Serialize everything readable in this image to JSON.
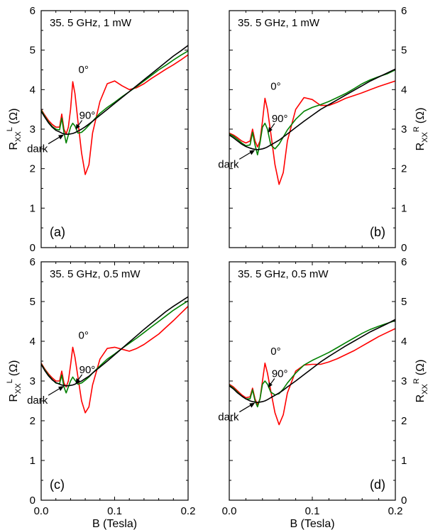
{
  "figure": {
    "xlabel": "B (Tesla)",
    "ylabel_left_main": "R",
    "ylabel_left_sub": "XX",
    "ylabel_left_sup": "L",
    "ylabel_right_main": "R",
    "ylabel_right_sub": "XX",
    "ylabel_right_sup": "R",
    "ylabel_unit": "(Ω)"
  },
  "chart_data": [
    {
      "type": "line",
      "panel_label": "(a)",
      "title": "35. 5 GHz, 1 mW",
      "xlim": [
        0,
        0.2
      ],
      "ylim": [
        0,
        6
      ],
      "x_ticks": [
        "0.0",
        "0.1",
        "0.2"
      ],
      "y_ticks": [
        "0",
        "1",
        "2",
        "3",
        "4",
        "5",
        "6"
      ],
      "x": [
        0,
        0.005,
        0.01,
        0.015,
        0.02,
        0.025,
        0.028,
        0.031,
        0.034,
        0.037,
        0.04,
        0.043,
        0.046,
        0.05,
        0.055,
        0.06,
        0.065,
        0.07,
        0.08,
        0.09,
        0.1,
        0.11,
        0.12,
        0.13,
        0.14,
        0.15,
        0.16,
        0.17,
        0.18,
        0.19,
        0.2
      ],
      "series": [
        {
          "name": "0°",
          "color": "#ff0000",
          "values": [
            3.5,
            3.35,
            3.22,
            3.12,
            3.05,
            3.05,
            3.38,
            3.0,
            2.88,
            3.05,
            3.5,
            4.2,
            3.9,
            3.2,
            2.4,
            1.85,
            2.1,
            2.9,
            3.7,
            4.15,
            4.22,
            4.1,
            4.0,
            4.05,
            4.15,
            4.28,
            4.4,
            4.52,
            4.63,
            4.75,
            4.88
          ]
        },
        {
          "name": "90°",
          "color": "#008000",
          "values": [
            3.48,
            3.32,
            3.18,
            3.07,
            3.0,
            2.98,
            3.28,
            2.92,
            2.65,
            2.85,
            3.05,
            3.15,
            3.08,
            2.9,
            2.92,
            3.0,
            3.1,
            3.2,
            3.4,
            3.55,
            3.68,
            3.82,
            3.95,
            4.08,
            4.22,
            4.36,
            4.5,
            4.62,
            4.75,
            4.87,
            4.98
          ]
        },
        {
          "name": "dark",
          "color": "#000000",
          "values": [
            3.45,
            3.3,
            3.16,
            3.05,
            2.97,
            2.93,
            2.9,
            2.88,
            2.87,
            2.87,
            2.88,
            2.89,
            2.91,
            2.95,
            3.0,
            3.06,
            3.13,
            3.2,
            3.35,
            3.5,
            3.65,
            3.8,
            3.95,
            4.1,
            4.25,
            4.4,
            4.55,
            4.7,
            4.85,
            4.98,
            5.12
          ]
        }
      ],
      "annotations": [
        "0°",
        "90°",
        "dark"
      ]
    },
    {
      "type": "line",
      "panel_label": "(b)",
      "title": "35. 5 GHz, 1 mW",
      "xlim": [
        0,
        0.2
      ],
      "ylim": [
        0,
        6
      ],
      "x_ticks": [
        "0.0",
        "0.1",
        "0.2"
      ],
      "y_ticks": [
        "0",
        "1",
        "2",
        "3",
        "4",
        "5",
        "6"
      ],
      "x": [
        0,
        0.005,
        0.01,
        0.015,
        0.02,
        0.025,
        0.028,
        0.031,
        0.034,
        0.037,
        0.04,
        0.043,
        0.046,
        0.05,
        0.055,
        0.06,
        0.065,
        0.07,
        0.08,
        0.09,
        0.1,
        0.11,
        0.12,
        0.13,
        0.14,
        0.15,
        0.16,
        0.17,
        0.18,
        0.19,
        0.2
      ],
      "series": [
        {
          "name": "0°",
          "color": "#ff0000",
          "values": [
            2.9,
            2.85,
            2.78,
            2.7,
            2.65,
            2.7,
            3.0,
            2.7,
            2.55,
            2.7,
            3.2,
            3.78,
            3.5,
            2.9,
            2.1,
            1.6,
            1.9,
            2.7,
            3.5,
            3.8,
            3.75,
            3.6,
            3.6,
            3.68,
            3.78,
            3.85,
            3.92,
            4.0,
            4.08,
            4.15,
            4.22
          ]
        },
        {
          "name": "90°",
          "color": "#008000",
          "values": [
            2.88,
            2.82,
            2.74,
            2.65,
            2.58,
            2.6,
            2.92,
            2.6,
            2.35,
            2.65,
            3.05,
            3.15,
            3.0,
            2.6,
            2.5,
            2.62,
            2.8,
            2.98,
            3.25,
            3.45,
            3.55,
            3.62,
            3.7,
            3.8,
            3.9,
            4.02,
            4.15,
            4.25,
            4.33,
            4.4,
            4.5
          ]
        },
        {
          "name": "dark",
          "color": "#000000",
          "values": [
            2.85,
            2.78,
            2.7,
            2.62,
            2.56,
            2.52,
            2.5,
            2.49,
            2.48,
            2.49,
            2.5,
            2.52,
            2.55,
            2.6,
            2.66,
            2.72,
            2.8,
            2.88,
            3.04,
            3.2,
            3.35,
            3.5,
            3.62,
            3.74,
            3.86,
            3.98,
            4.1,
            4.22,
            4.32,
            4.42,
            4.52
          ]
        }
      ],
      "annotations": [
        "0°",
        "90°",
        "dark"
      ]
    },
    {
      "type": "line",
      "panel_label": "(c)",
      "title": "35. 5 GHz, 0.5 mW",
      "xlim": [
        0,
        0.2
      ],
      "ylim": [
        0,
        6
      ],
      "x_ticks": [
        "0.0",
        "0.1",
        "0.2"
      ],
      "y_ticks": [
        "0",
        "1",
        "2",
        "3",
        "4",
        "5",
        "6"
      ],
      "x": [
        0,
        0.005,
        0.01,
        0.015,
        0.02,
        0.025,
        0.028,
        0.031,
        0.034,
        0.037,
        0.04,
        0.043,
        0.046,
        0.05,
        0.055,
        0.06,
        0.065,
        0.07,
        0.08,
        0.09,
        0.1,
        0.11,
        0.12,
        0.13,
        0.14,
        0.15,
        0.16,
        0.17,
        0.18,
        0.19,
        0.2
      ],
      "series": [
        {
          "name": "0°",
          "color": "#ff0000",
          "values": [
            3.45,
            3.3,
            3.18,
            3.08,
            3.0,
            3.0,
            3.25,
            2.95,
            2.85,
            3.0,
            3.4,
            3.85,
            3.6,
            3.1,
            2.5,
            2.2,
            2.35,
            2.9,
            3.55,
            3.82,
            3.85,
            3.8,
            3.75,
            3.82,
            3.92,
            4.05,
            4.18,
            4.35,
            4.52,
            4.7,
            4.88
          ]
        },
        {
          "name": "90°",
          "color": "#008000",
          "values": [
            3.43,
            3.28,
            3.15,
            3.04,
            2.95,
            2.93,
            3.15,
            2.85,
            2.7,
            2.85,
            3.0,
            3.1,
            3.02,
            2.92,
            2.95,
            3.02,
            3.1,
            3.2,
            3.38,
            3.55,
            3.68,
            3.82,
            3.95,
            4.08,
            4.22,
            4.36,
            4.5,
            4.64,
            4.78,
            4.9,
            5.02
          ]
        },
        {
          "name": "dark",
          "color": "#000000",
          "values": [
            3.42,
            3.26,
            3.13,
            3.03,
            2.96,
            2.92,
            2.9,
            2.89,
            2.88,
            2.88,
            2.89,
            2.9,
            2.92,
            2.96,
            3.0,
            3.06,
            3.12,
            3.2,
            3.35,
            3.5,
            3.66,
            3.82,
            3.98,
            4.14,
            4.3,
            4.45,
            4.6,
            4.75,
            4.88,
            5.0,
            5.12
          ]
        }
      ],
      "annotations": [
        "0°",
        "90°",
        "dark"
      ]
    },
    {
      "type": "line",
      "panel_label": "(d)",
      "title": "35. 5 GHz, 0.5 mW",
      "xlim": [
        0,
        0.2
      ],
      "ylim": [
        0,
        6
      ],
      "x_ticks": [
        "0.0",
        "0.1",
        "0.2"
      ],
      "y_ticks": [
        "0",
        "1",
        "2",
        "3",
        "4",
        "5",
        "6"
      ],
      "x": [
        0,
        0.005,
        0.01,
        0.015,
        0.02,
        0.025,
        0.028,
        0.031,
        0.034,
        0.037,
        0.04,
        0.043,
        0.046,
        0.05,
        0.055,
        0.06,
        0.065,
        0.07,
        0.08,
        0.09,
        0.1,
        0.11,
        0.12,
        0.13,
        0.14,
        0.15,
        0.16,
        0.17,
        0.18,
        0.19,
        0.2
      ],
      "series": [
        {
          "name": "0°",
          "color": "#ff0000",
          "values": [
            2.92,
            2.85,
            2.75,
            2.65,
            2.58,
            2.6,
            2.82,
            2.55,
            2.4,
            2.55,
            3.0,
            3.45,
            3.2,
            2.75,
            2.2,
            1.9,
            2.15,
            2.7,
            3.25,
            3.4,
            3.42,
            3.42,
            3.48,
            3.56,
            3.66,
            3.76,
            3.88,
            4.0,
            4.12,
            4.22,
            4.32
          ]
        },
        {
          "name": "90°",
          "color": "#008000",
          "values": [
            2.9,
            2.82,
            2.72,
            2.62,
            2.55,
            2.55,
            2.78,
            2.5,
            2.35,
            2.55,
            2.92,
            3.0,
            2.92,
            2.72,
            2.65,
            2.68,
            2.8,
            2.95,
            3.2,
            3.4,
            3.52,
            3.62,
            3.72,
            3.84,
            3.96,
            4.08,
            4.2,
            4.3,
            4.38,
            4.45,
            4.52
          ]
        },
        {
          "name": "dark",
          "color": "#000000",
          "values": [
            2.88,
            2.8,
            2.7,
            2.62,
            2.55,
            2.5,
            2.48,
            2.47,
            2.46,
            2.47,
            2.48,
            2.5,
            2.53,
            2.58,
            2.64,
            2.7,
            2.77,
            2.85,
            3.0,
            3.16,
            3.32,
            3.48,
            3.62,
            3.75,
            3.88,
            4.0,
            4.12,
            4.24,
            4.34,
            4.44,
            4.55
          ]
        }
      ],
      "annotations": [
        "0°",
        "90°",
        "dark"
      ]
    }
  ]
}
